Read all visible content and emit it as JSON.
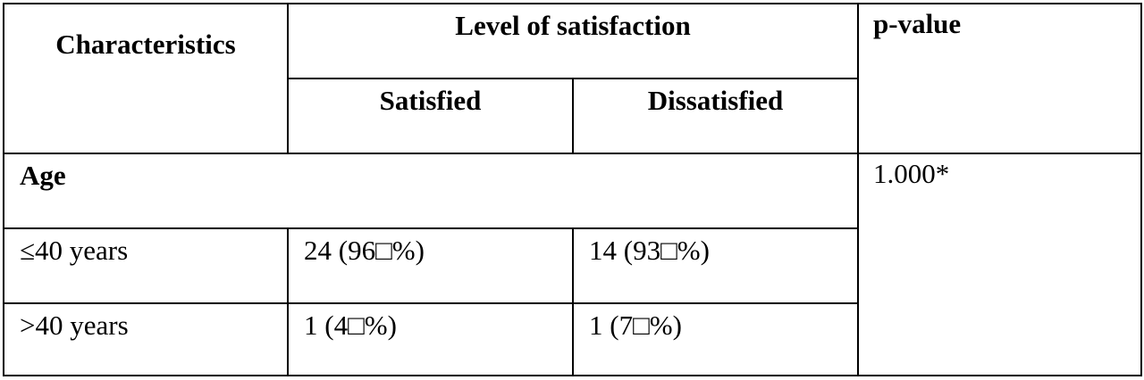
{
  "table": {
    "headers": {
      "characteristics": "Characteristics",
      "level_of_satisfaction": "Level of satisfaction",
      "p_value": "p-value",
      "satisfied": "Satisfied",
      "dissatisfied": "Dissatisfied"
    },
    "sections": [
      {
        "label": "Age",
        "p_value": "1.000*",
        "rows": [
          {
            "label": "≤40 years",
            "satisfied": "24 (96□%)",
            "dissatisfied": "14 (93□%)"
          },
          {
            "label": ">40 years",
            "satisfied": "1 (4□%)",
            "dissatisfied": "1 (7□%)"
          }
        ]
      }
    ]
  }
}
